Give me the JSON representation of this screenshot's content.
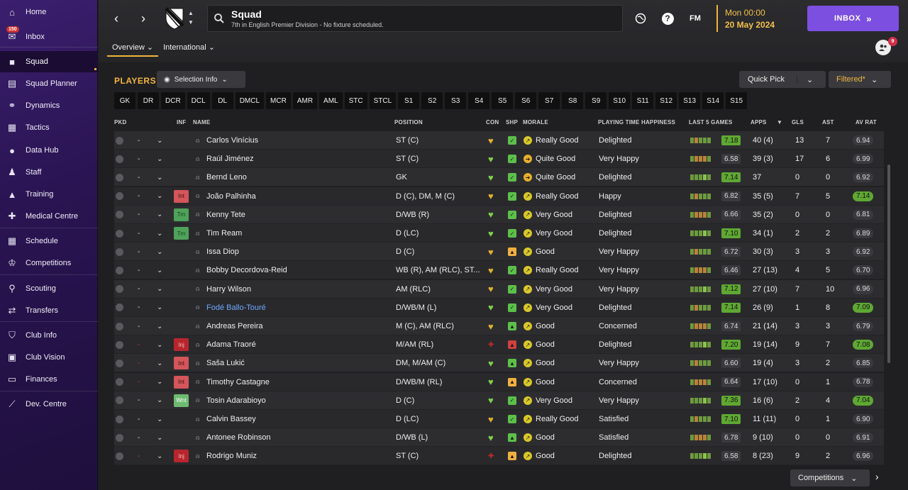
{
  "sidebar": {
    "items": [
      {
        "label": "Home",
        "icon": "home-icon",
        "glyph": "⌂"
      },
      {
        "label": "Inbox",
        "icon": "inbox-icon",
        "glyph": "✉",
        "badge": "150"
      },
      {
        "label": "Squad",
        "icon": "squad-icon",
        "glyph": "■",
        "active": true
      },
      {
        "label": "Squad Planner",
        "icon": "planner-icon",
        "glyph": "▤"
      },
      {
        "label": "Dynamics",
        "icon": "dynamics-icon",
        "glyph": "⚭"
      },
      {
        "label": "Tactics",
        "icon": "tactics-icon",
        "glyph": "▦"
      },
      {
        "label": "Data Hub",
        "icon": "data-hub-icon",
        "glyph": "●"
      },
      {
        "label": "Staff",
        "icon": "staff-icon",
        "glyph": "♟"
      },
      {
        "label": "Training",
        "icon": "training-icon",
        "glyph": "▲"
      },
      {
        "label": "Medical Centre",
        "icon": "medical-icon",
        "glyph": "✚"
      },
      {
        "label": "Schedule",
        "icon": "schedule-icon",
        "glyph": "▦"
      },
      {
        "label": "Competitions",
        "icon": "trophy-icon",
        "glyph": "♔"
      },
      {
        "label": "Scouting",
        "icon": "scouting-icon",
        "glyph": "⚲"
      },
      {
        "label": "Transfers",
        "icon": "transfers-icon",
        "glyph": "⇄"
      },
      {
        "label": "Club Info",
        "icon": "club-info-icon",
        "glyph": "⛉"
      },
      {
        "label": "Club Vision",
        "icon": "club-vision-icon",
        "glyph": "▣"
      },
      {
        "label": "Finances",
        "icon": "finances-icon",
        "glyph": "▭"
      },
      {
        "label": "Dev. Centre",
        "icon": "dev-centre-icon",
        "glyph": "⟋"
      }
    ]
  },
  "header": {
    "title": "Squad",
    "subtitle": "7th in English Premier Division - No fixture scheduled.",
    "time": "Mon 00:00",
    "date": "20 May 2024",
    "inbox_label": "INBOX",
    "notif_count": "9",
    "fm_label": "FM",
    "tabs": [
      "Overview",
      "International"
    ]
  },
  "toolbar": {
    "players_title": "PLAYERS",
    "selection_info": "Selection Info",
    "quick_pick": "Quick Pick",
    "filtered": "Filtered*",
    "competitions": "Competitions"
  },
  "positions": [
    "GK",
    "DR",
    "DCR",
    "DCL",
    "DL",
    "DMCL",
    "MCR",
    "AMR",
    "AML",
    "STC",
    "STCL",
    "S1",
    "S2",
    "S3",
    "S4",
    "S5",
    "S6",
    "S7",
    "S8",
    "S9",
    "S10",
    "S11",
    "S12",
    "S13",
    "S14",
    "S15"
  ],
  "columns": {
    "pkd": "PKD",
    "inf": "INF",
    "name": "NAME",
    "position": "POSITION",
    "con": "CON",
    "shp": "SHP",
    "morale": "MORALE",
    "pth": "PLAYING TIME HAPPINESS",
    "last5": "LAST 5 GAMES",
    "apps": "APPS",
    "gls": "GLS",
    "ast": "AST",
    "avrat": "AV RAT"
  },
  "colors": {
    "accent": "#7c4fe0",
    "gold": "#f3b540",
    "good": "#5fa833",
    "injury": "#b8262d"
  },
  "players": [
    {
      "name": "Carlos Vinícius",
      "position": "ST (C)",
      "inf": "",
      "morale": "Really Good",
      "pth": "Delighted",
      "last5": "7.18",
      "l5good": true,
      "apps": "40 (4)",
      "gls": "13",
      "ast": "7",
      "avrat": "6.94",
      "avgood": false,
      "dash": "-"
    },
    {
      "name": "Raúl Jiménez",
      "position": "ST (C)",
      "inf": "",
      "morale": "Quite Good",
      "pth": "Very Happy",
      "last5": "6.58",
      "l5good": false,
      "apps": "39 (3)",
      "gls": "17",
      "ast": "6",
      "avrat": "6.99",
      "avgood": false,
      "dash": "-"
    },
    {
      "name": "Bernd Leno",
      "position": "GK",
      "inf": "",
      "morale": "Quite Good",
      "pth": "Delighted",
      "last5": "7.14",
      "l5good": true,
      "apps": "37",
      "gls": "0",
      "ast": "0",
      "avrat": "6.92",
      "avgood": false,
      "dash": "-"
    },
    {
      "name": "João Palhinha",
      "position": "D (C), DM, M (C)",
      "inf": "Int",
      "morale": "Really Good",
      "pth": "Happy",
      "last5": "6.82",
      "l5good": false,
      "apps": "35 (5)",
      "gls": "7",
      "ast": "5",
      "avrat": "7.14",
      "avgood": true,
      "dash": "-"
    },
    {
      "name": "Kenny Tete",
      "position": "D/WB (R)",
      "inf": "Trn",
      "morale": "Very Good",
      "pth": "Delighted",
      "last5": "6.66",
      "l5good": false,
      "apps": "35 (2)",
      "gls": "0",
      "ast": "0",
      "avrat": "6.81",
      "avgood": false,
      "dash": "-"
    },
    {
      "name": "Tim Ream",
      "position": "D (LC)",
      "inf": "Trn",
      "morale": "Very Good",
      "pth": "Delighted",
      "last5": "7.10",
      "l5good": true,
      "apps": "34 (1)",
      "gls": "2",
      "ast": "2",
      "avrat": "6.89",
      "avgood": false,
      "dash": "-"
    },
    {
      "name": "Issa Diop",
      "position": "D (C)",
      "inf": "",
      "morale": "Good",
      "pth": "Very Happy",
      "last5": "6.72",
      "l5good": false,
      "apps": "30 (3)",
      "gls": "3",
      "ast": "3",
      "avrat": "6.92",
      "avgood": false,
      "dash": "-"
    },
    {
      "name": "Bobby Decordova-Reid",
      "position": "WB (R), AM (RLC), ST...",
      "inf": "",
      "morale": "Really Good",
      "pth": "Very Happy",
      "last5": "6.46",
      "l5good": false,
      "apps": "27 (13)",
      "gls": "4",
      "ast": "5",
      "avrat": "6.70",
      "avgood": false,
      "dash": "-"
    },
    {
      "name": "Harry Wilson",
      "position": "AM (RLC)",
      "inf": "",
      "morale": "Very Good",
      "pth": "Very Happy",
      "last5": "7.12",
      "l5good": true,
      "apps": "27 (10)",
      "gls": "7",
      "ast": "10",
      "avrat": "6.96",
      "avgood": false,
      "dash": "-"
    },
    {
      "name": "Fodé Ballo-Touré",
      "position": "D/WB/M (L)",
      "inf": "",
      "morale": "Very Good",
      "pth": "Delighted",
      "last5": "7.14",
      "l5good": true,
      "apps": "26 (9)",
      "gls": "1",
      "ast": "8",
      "avrat": "7.09",
      "avgood": true,
      "dash": "-",
      "blue": true
    },
    {
      "name": "Andreas Pereira",
      "position": "M (C), AM (RLC)",
      "inf": "",
      "morale": "Good",
      "pth": "Concerned",
      "last5": "6.74",
      "l5good": false,
      "apps": "21 (14)",
      "gls": "3",
      "ast": "3",
      "avrat": "6.79",
      "avgood": false,
      "dash": "-"
    },
    {
      "name": "Adama Traoré",
      "position": "M/AM (RL)",
      "inf": "Inj",
      "morale": "Good",
      "pth": "Delighted",
      "last5": "7.20",
      "l5good": true,
      "apps": "19 (14)",
      "gls": "9",
      "ast": "7",
      "avrat": "7.08",
      "avgood": true,
      "dash": "-",
      "reddash": true
    },
    {
      "name": "Saša Lukić",
      "position": "DM, M/AM (C)",
      "inf": "Int",
      "morale": "Good",
      "pth": "Very Happy",
      "last5": "6.60",
      "l5good": false,
      "apps": "19 (4)",
      "gls": "3",
      "ast": "2",
      "avrat": "6.85",
      "avgood": false,
      "dash": "-",
      "reddash": true
    },
    {
      "name": "Timothy Castagne",
      "position": "D/WB/M (RL)",
      "inf": "Int",
      "morale": "Good",
      "pth": "Concerned",
      "last5": "6.64",
      "l5good": false,
      "apps": "17 (10)",
      "gls": "0",
      "ast": "1",
      "avrat": "6.78",
      "avgood": false,
      "dash": "-",
      "reddash": true
    },
    {
      "name": "Tosin Adarabioyo",
      "position": "D (C)",
      "inf": "Wnt",
      "morale": "Very Good",
      "pth": "Very Happy",
      "last5": "7.36",
      "l5good": true,
      "apps": "16 (6)",
      "gls": "2",
      "ast": "4",
      "avrat": "7.04",
      "avgood": true,
      "dash": "-"
    },
    {
      "name": "Calvin Bassey",
      "position": "D (LC)",
      "inf": "",
      "morale": "Really Good",
      "pth": "Satisfied",
      "last5": "7.10",
      "l5good": true,
      "apps": "11 (11)",
      "gls": "0",
      "ast": "1",
      "avrat": "6.90",
      "avgood": false,
      "dash": "-"
    },
    {
      "name": "Antonee Robinson",
      "position": "D/WB (L)",
      "inf": "",
      "morale": "Good",
      "pth": "Satisfied",
      "last5": "6.78",
      "l5good": false,
      "apps": "9 (10)",
      "gls": "0",
      "ast": "0",
      "avrat": "6.91",
      "avgood": false,
      "dash": "-"
    },
    {
      "name": "Rodrigo Muniz",
      "position": "ST (C)",
      "inf": "Inj",
      "morale": "Good",
      "pth": "Delighted",
      "last5": "6.58",
      "l5good": false,
      "apps": "8 (23)",
      "gls": "9",
      "ast": "2",
      "avrat": "6.96",
      "avgood": false,
      "dash": "-",
      "reddash": true
    }
  ]
}
